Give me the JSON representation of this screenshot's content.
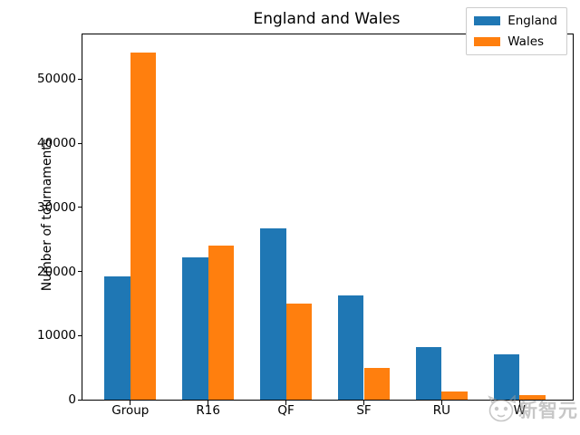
{
  "title": "England and Wales",
  "chart_data": {
    "type": "bar",
    "categories": [
      "Group",
      "R16",
      "QF",
      "SF",
      "RU",
      "W"
    ],
    "series": [
      {
        "name": "England",
        "color": "#1f77b4",
        "values": [
          19300,
          22200,
          26700,
          16200,
          8200,
          7100
        ]
      },
      {
        "name": "Wales",
        "color": "#ff7f0e",
        "values": [
          54200,
          24000,
          15000,
          5000,
          1300,
          700
        ]
      }
    ],
    "title": "England and Wales",
    "xlabel": "",
    "ylabel": "Number of tournaments",
    "ylim": [
      0,
      57000
    ],
    "yticks": [
      0,
      10000,
      20000,
      30000,
      40000,
      50000
    ],
    "ytick_labels": [
      "0",
      "10000",
      "20000",
      "30000",
      "40000",
      "50000"
    ],
    "grid": false,
    "legend_position": "upper right"
  },
  "legend": {
    "items": [
      {
        "label": "England",
        "color": "#1f77b4"
      },
      {
        "label": "Wales",
        "color": "#ff7f0e"
      }
    ]
  },
  "watermark": {
    "text": "新智元",
    "logo": "robot-face-icon",
    "color": "#9a9a9a"
  }
}
